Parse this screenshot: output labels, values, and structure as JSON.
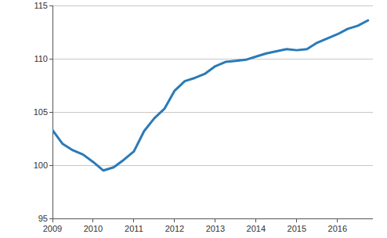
{
  "chart_data": {
    "type": "line",
    "x": [
      2009,
      2009.25,
      2009.5,
      2009.75,
      2010,
      2010.25,
      2010.5,
      2010.75,
      2011,
      2011.25,
      2011.5,
      2011.75,
      2012,
      2012.25,
      2012.5,
      2012.75,
      2013,
      2013.25,
      2013.5,
      2013.75,
      2014,
      2014.25,
      2014.5,
      2014.75,
      2015,
      2015.25,
      2015.5,
      2015.75,
      2016,
      2016.25,
      2016.5,
      2016.75
    ],
    "values": [
      103.3,
      102.0,
      101.4,
      101.0,
      100.3,
      99.5,
      99.8,
      100.5,
      101.3,
      103.2,
      104.4,
      105.3,
      107.0,
      107.9,
      108.2,
      108.6,
      109.3,
      109.7,
      109.8,
      109.9,
      110.2,
      110.5,
      110.7,
      110.9,
      110.8,
      110.9,
      111.5,
      111.9,
      112.3,
      112.8,
      113.1,
      113.6
    ],
    "color": "#2a7ab8",
    "xlim": [
      2009,
      2016.87
    ],
    "xticks": [
      2009,
      2010,
      2011,
      2012,
      2013,
      2014,
      2015,
      2016
    ],
    "ylim": [
      95,
      115
    ],
    "yticks": [
      95,
      100,
      105,
      110,
      115
    ],
    "grid": true
  }
}
